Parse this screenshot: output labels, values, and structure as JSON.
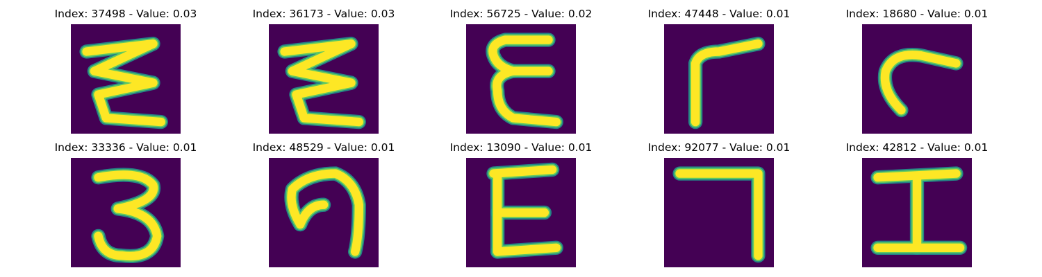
{
  "chart_data": {
    "type": "image-grid",
    "colormap": "viridis",
    "colors": {
      "background": "#440154",
      "edge": "#21918c",
      "mid": "#5ec962",
      "stroke": "#fde725"
    },
    "panels": [
      {
        "title": "Index: 37498 - Value: 0.03",
        "index": 37498,
        "value": 0.03,
        "glyph": "zigzag-3"
      },
      {
        "title": "Index: 36173 - Value: 0.03",
        "index": 36173,
        "value": 0.03,
        "glyph": "zigzag-3"
      },
      {
        "title": "Index: 56725 - Value: 0.02",
        "index": 56725,
        "value": 0.02,
        "glyph": "epsilon"
      },
      {
        "title": "Index: 47448 - Value: 0.01",
        "index": 47448,
        "value": 0.01,
        "glyph": "r"
      },
      {
        "title": "Index: 18680 - Value: 0.01",
        "index": 18680,
        "value": 0.01,
        "glyph": "hook"
      },
      {
        "title": "Index: 33336 - Value: 0.01",
        "index": 33336,
        "value": 0.01,
        "glyph": "3"
      },
      {
        "title": "Index: 48529 - Value: 0.01",
        "index": 48529,
        "value": 0.01,
        "glyph": "hook-9"
      },
      {
        "title": "Index: 13090 - Value: 0.01",
        "index": 13090,
        "value": 0.01,
        "glyph": "E"
      },
      {
        "title": "Index: 92077 - Value: 0.01",
        "index": 92077,
        "value": 0.01,
        "glyph": "7"
      },
      {
        "title": "Index: 42812 - Value: 0.01",
        "index": 42812,
        "value": 0.01,
        "glyph": "I"
      }
    ]
  }
}
